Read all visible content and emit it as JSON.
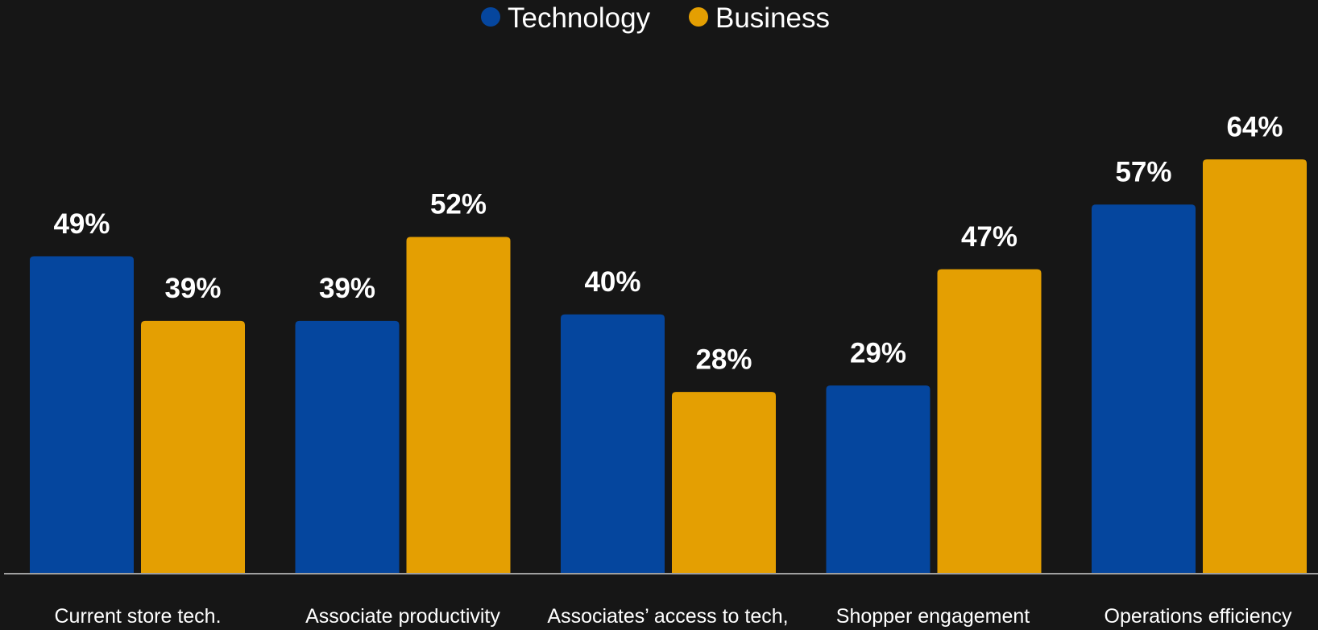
{
  "chart_data": {
    "type": "bar",
    "categories": [
      "Current store tech.",
      "Associate productivity",
      "Associates’ access to tech,",
      "Shopper engagement",
      "Operations efficiency"
    ],
    "series": [
      {
        "name": "Technology",
        "color": "#05469e",
        "values": [
          49,
          39,
          40,
          29,
          57
        ],
        "labels": [
          "49%",
          "39%",
          "40%",
          "29%",
          "57%"
        ]
      },
      {
        "name": "Business",
        "color": "#e49f02",
        "values": [
          39,
          52,
          28,
          47,
          64
        ],
        "labels": [
          "39%",
          "52%",
          "28%",
          "47%",
          "64%"
        ]
      }
    ],
    "title": "",
    "xlabel": "",
    "ylabel": "",
    "ylim": [
      0,
      64
    ],
    "grid": false,
    "legend_position": "top-center",
    "axis_line_color": "#a0a0a0",
    "background": "#161616"
  }
}
